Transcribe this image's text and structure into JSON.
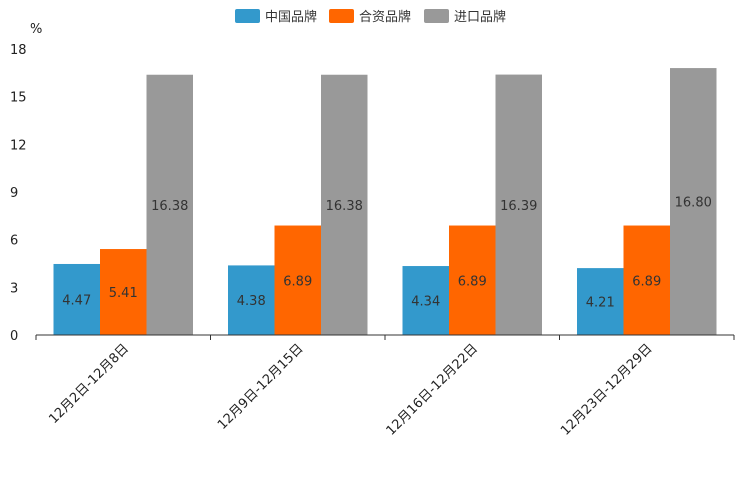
{
  "chart_data": {
    "type": "bar",
    "title": "",
    "xlabel": "",
    "ylabel": "%",
    "ylim": [
      0,
      18
    ],
    "yticks": [
      0,
      3,
      6,
      9,
      12,
      15,
      18
    ],
    "legend_position": "top-center",
    "grid": false,
    "categories": [
      "12月2日-12月8日",
      "12月9日-12月15日",
      "12月16日-12月22日",
      "12月23日-12月29日"
    ],
    "series": [
      {
        "name": "中国品牌",
        "color": "#3399cc",
        "values": [
          4.47,
          4.38,
          4.34,
          4.21
        ]
      },
      {
        "name": "合资品牌",
        "color": "#ff6600",
        "values": [
          5.41,
          6.89,
          6.89,
          6.89
        ]
      },
      {
        "name": "进口品牌",
        "color": "#999999",
        "values": [
          16.38,
          16.38,
          16.39,
          16.8
        ]
      }
    ]
  }
}
